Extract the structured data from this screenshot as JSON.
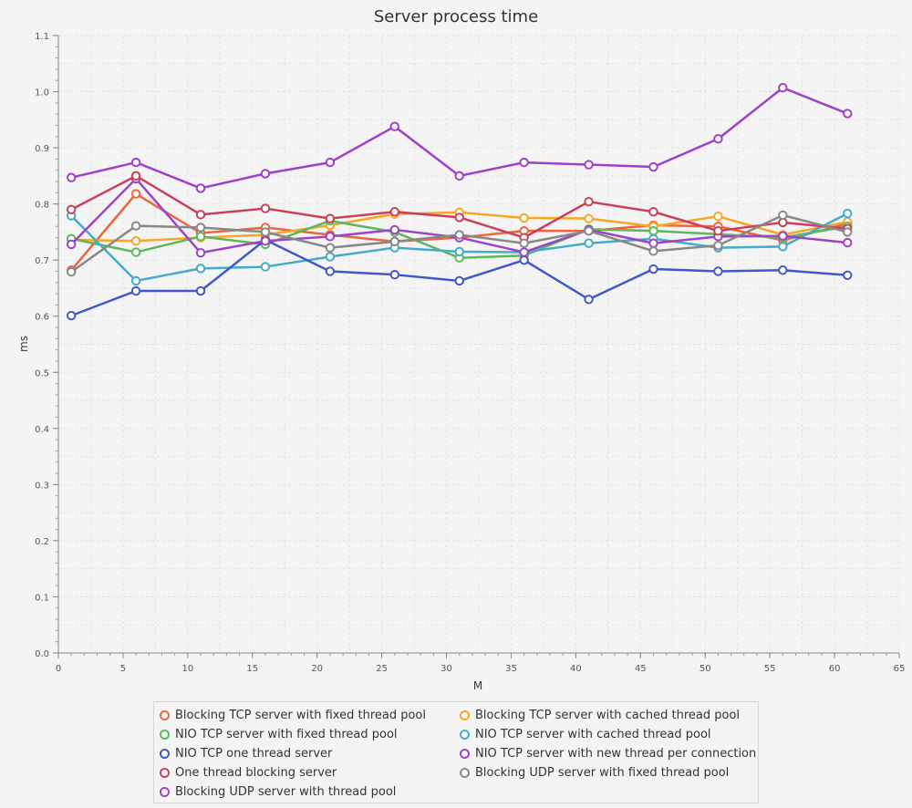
{
  "chart_data": {
    "type": "line",
    "title": "Server process time",
    "xlabel": "M",
    "ylabel": "ms",
    "xlim": [
      0,
      65
    ],
    "ylim": [
      0.0,
      1.1
    ],
    "xticks": [
      0,
      5,
      10,
      15,
      20,
      25,
      30,
      35,
      40,
      45,
      50,
      55,
      60,
      65
    ],
    "yticks": [
      "0.0",
      "0.1",
      "0.2",
      "0.3",
      "0.4",
      "0.5",
      "0.6",
      "0.7",
      "0.8",
      "0.9",
      "1.0",
      "1.1"
    ],
    "grid": true,
    "legend_position": "bottom",
    "x": [
      1,
      6,
      11,
      16,
      21,
      26,
      31,
      36,
      41,
      46,
      51,
      56,
      61
    ],
    "series": [
      {
        "name": "Blocking TCP server with fixed thread pool",
        "color": "#f0643c",
        "values": [
          0.682,
          0.818,
          0.748,
          0.758,
          0.745,
          0.733,
          0.74,
          0.752,
          0.752,
          0.762,
          0.76,
          0.735,
          0.765
        ]
      },
      {
        "name": "Blocking TCP server with cached thread pool",
        "color": "#f5a623",
        "values": [
          0.736,
          0.734,
          0.74,
          0.745,
          0.762,
          0.782,
          0.785,
          0.775,
          0.774,
          0.76,
          0.778,
          0.745,
          0.768
        ]
      },
      {
        "name": "NIO TCP server with fixed thread pool",
        "color": "#5cb85c",
        "values": [
          0.738,
          0.714,
          0.742,
          0.728,
          0.77,
          0.75,
          0.704,
          0.708,
          0.755,
          0.752,
          0.746,
          0.74,
          0.76
        ]
      },
      {
        "name": "NIO TCP server with cached thread pool",
        "color": "#45abc8",
        "values": [
          0.779,
          0.663,
          0.685,
          0.688,
          0.706,
          0.722,
          0.715,
          0.714,
          0.73,
          0.738,
          0.722,
          0.724,
          0.783
        ]
      },
      {
        "name": "NIO TCP one thread server",
        "color": "#4158c8",
        "values": [
          0.601,
          0.645,
          0.645,
          0.736,
          0.68,
          0.674,
          0.663,
          0.7,
          0.63,
          0.684,
          0.68,
          0.682,
          0.673
        ]
      },
      {
        "name": "NIO TCP server with new thread per connection",
        "color": "#9b44c8",
        "values": [
          0.728,
          0.845,
          0.713,
          0.734,
          0.742,
          0.754,
          0.74,
          0.714,
          0.754,
          0.73,
          0.742,
          0.743,
          0.731
        ]
      },
      {
        "name": "One thread blocking server",
        "color": "#c8405a",
        "values": [
          0.79,
          0.85,
          0.781,
          0.792,
          0.774,
          0.786,
          0.776,
          0.74,
          0.804,
          0.786,
          0.752,
          0.767,
          0.756
        ]
      },
      {
        "name": "Blocking UDP server with fixed thread pool",
        "color": "#888888",
        "values": [
          0.679,
          0.761,
          0.758,
          0.75,
          0.722,
          0.733,
          0.745,
          0.73,
          0.752,
          0.716,
          0.726,
          0.78,
          0.75
        ]
      },
      {
        "name": "Blocking UDP server with thread pool",
        "color": "#a040c8",
        "values": [
          0.847,
          0.874,
          0.828,
          0.854,
          0.874,
          0.938,
          0.85,
          0.874,
          0.87,
          0.866,
          0.916,
          1.007,
          0.961
        ]
      }
    ]
  }
}
